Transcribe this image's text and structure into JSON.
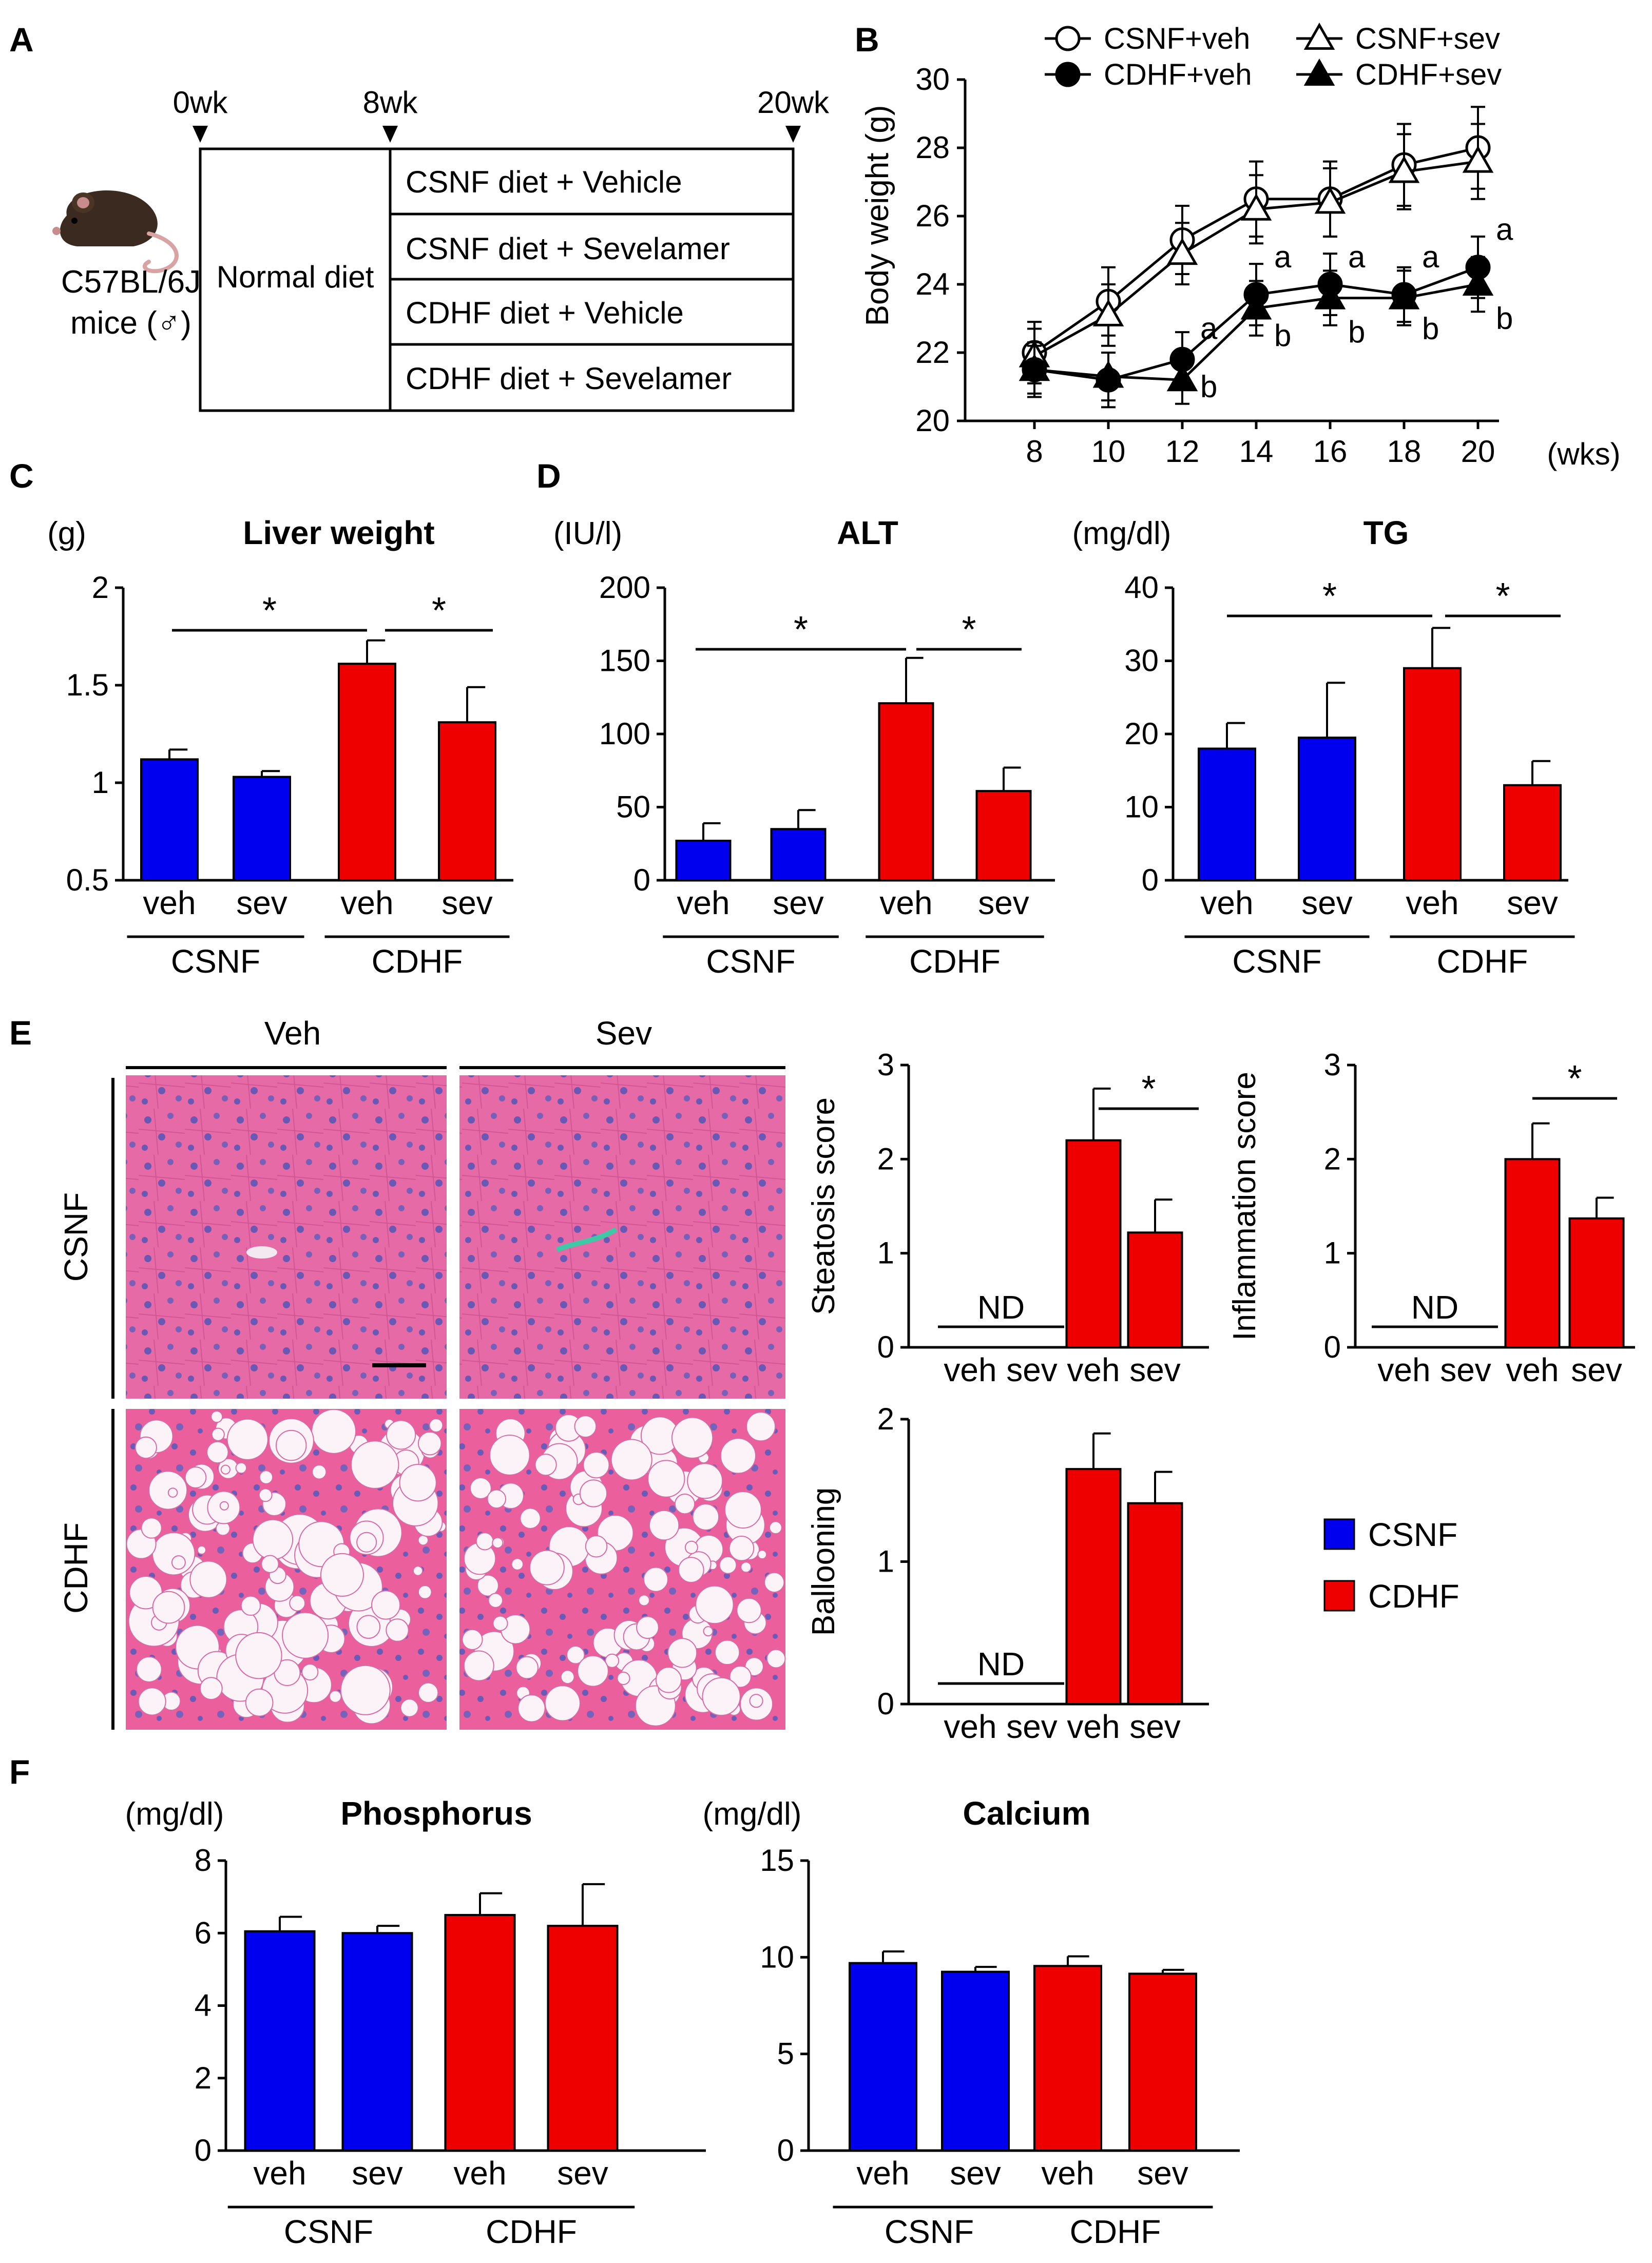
{
  "panels": {
    "A": "A",
    "B": "B",
    "C": "C",
    "D": "D",
    "E": "E",
    "F": "F"
  },
  "colors": {
    "csnf": "#0000ee",
    "cdhf": "#ee0000",
    "axis": "#000000"
  },
  "schematic": {
    "mouse_label_line1": "C57BL/6J",
    "mouse_label_line2": "mice (♂)",
    "time_marks": [
      "0wk",
      "8wk",
      "20wk"
    ],
    "normal_diet": "Normal diet",
    "arms": [
      "CSNF diet + Vehicle",
      "CSNF diet + Sevelamer",
      "CDHF diet + Vehicle",
      "CDHF diet + Sevelamer"
    ],
    "icons": [
      "mouse-icon",
      "timeline-arrow-icon"
    ]
  },
  "histology": {
    "col_labels": [
      "Veh",
      "Sev"
    ],
    "row_labels": [
      "CSNF",
      "CDHF"
    ]
  },
  "legend_E": {
    "items": [
      "CSNF",
      "CDHF"
    ]
  },
  "chart_data": [
    {
      "id": "B",
      "type": "line",
      "ylabel": "Body weight (g)",
      "xunit": "(wks)",
      "x": [
        8,
        10,
        12,
        14,
        16,
        18,
        20
      ],
      "ylim": [
        20,
        30
      ],
      "yticks": [
        20,
        22,
        24,
        26,
        28,
        30
      ],
      "series": [
        {
          "name": "CSNF+veh",
          "marker": "circle-open",
          "values": [
            22.0,
            23.5,
            25.3,
            26.5,
            26.5,
            27.5,
            28.0
          ],
          "err": [
            0.9,
            1.0,
            1.0,
            1.1,
            1.1,
            1.2,
            1.2
          ]
        },
        {
          "name": "CSNF+sev",
          "marker": "triangle-open",
          "values": [
            21.9,
            23.1,
            24.9,
            26.2,
            26.4,
            27.3,
            27.6
          ],
          "err": [
            0.8,
            0.9,
            0.9,
            1.0,
            1.0,
            1.1,
            1.1
          ]
        },
        {
          "name": "CDHF+veh",
          "marker": "circle-filled",
          "values": [
            21.5,
            21.2,
            21.8,
            23.7,
            24.0,
            23.7,
            24.5
          ],
          "err": [
            0.8,
            0.8,
            0.8,
            0.9,
            0.9,
            0.8,
            0.9
          ]
        },
        {
          "name": "CDHF+sev",
          "marker": "triangle-filled",
          "values": [
            21.5,
            21.3,
            21.2,
            23.3,
            23.6,
            23.6,
            24.0
          ],
          "err": [
            0.7,
            0.7,
            0.7,
            0.8,
            0.8,
            0.8,
            0.8
          ]
        }
      ],
      "sig_a_labels": [
        "a",
        "a",
        "a",
        "a",
        "a"
      ],
      "sig_b_labels": [
        "b",
        "b",
        "b",
        "b",
        "b"
      ]
    },
    {
      "id": "C",
      "type": "bar",
      "title": "Liver weight",
      "unit": "(g)",
      "categories": [
        "veh",
        "sev",
        "veh",
        "sev"
      ],
      "groups": [
        "CSNF",
        "CDHF"
      ],
      "values": [
        1.12,
        1.03,
        1.61,
        1.31
      ],
      "err": [
        0.05,
        0.03,
        0.12,
        0.18
      ],
      "ylim": [
        0.5,
        2
      ],
      "ytick_labels": [
        "0.5",
        "1",
        "1.5",
        "2"
      ],
      "sig": [
        "*",
        "*"
      ]
    },
    {
      "id": "D1",
      "type": "bar",
      "title": "ALT",
      "unit": "(IU/l)",
      "categories": [
        "veh",
        "sev",
        "veh",
        "sev"
      ],
      "groups": [
        "CSNF",
        "CDHF"
      ],
      "values": [
        27,
        35,
        121,
        61
      ],
      "err": [
        12,
        13,
        31,
        16
      ],
      "ylim": [
        0,
        200
      ],
      "ytick_labels": [
        "0",
        "50",
        "100",
        "150",
        "200"
      ],
      "sig": [
        "*",
        "*"
      ]
    },
    {
      "id": "D2",
      "type": "bar",
      "title": "TG",
      "unit": "(mg/dl)",
      "categories": [
        "veh",
        "sev",
        "veh",
        "sev"
      ],
      "groups": [
        "CSNF",
        "CDHF"
      ],
      "values": [
        18,
        19.5,
        29,
        13
      ],
      "err": [
        3.5,
        7.5,
        5.5,
        3.3
      ],
      "ylim": [
        0,
        40
      ],
      "ytick_labels": [
        "0",
        "10",
        "20",
        "30",
        "40"
      ],
      "sig": [
        "*",
        "*"
      ]
    },
    {
      "id": "E1",
      "type": "bar",
      "ylabel": "Steatosis score",
      "categories": [
        "veh",
        "sev",
        "veh",
        "sev"
      ],
      "values": [
        null,
        null,
        2.2,
        1.22
      ],
      "err": [
        0,
        0,
        0.55,
        0.35
      ],
      "ylim": [
        0,
        3
      ],
      "ytick_labels": [
        "0",
        "1",
        "2",
        "3"
      ],
      "nd": "ND",
      "sig": [
        "*"
      ]
    },
    {
      "id": "E2",
      "type": "bar",
      "ylabel": "Inflammation score",
      "categories": [
        "veh",
        "sev",
        "veh",
        "sev"
      ],
      "values": [
        null,
        null,
        2.0,
        1.37
      ],
      "err": [
        0,
        0,
        0.38,
        0.22
      ],
      "ylim": [
        0,
        3
      ],
      "ytick_labels": [
        "0",
        "1",
        "2",
        "3"
      ],
      "nd": "ND",
      "sig": [
        "*"
      ]
    },
    {
      "id": "E3",
      "type": "bar",
      "ylabel": "Ballooning",
      "categories": [
        "veh",
        "sev",
        "veh",
        "sev"
      ],
      "values": [
        null,
        null,
        1.65,
        1.41
      ],
      "err": [
        0,
        0,
        0.25,
        0.22
      ],
      "ylim": [
        0,
        2
      ],
      "ytick_labels": [
        "0",
        "1",
        "2"
      ],
      "nd": "ND",
      "sig": []
    },
    {
      "id": "F1",
      "type": "bar",
      "title": "Phosphorus",
      "unit": "(mg/dl)",
      "categories": [
        "veh",
        "sev",
        "veh",
        "sev"
      ],
      "groups": [
        "CSNF",
        "CDHF"
      ],
      "values": [
        6.05,
        6.0,
        6.5,
        6.2
      ],
      "err": [
        0.4,
        0.2,
        0.6,
        1.15
      ],
      "ylim": [
        0,
        8
      ],
      "ytick_labels": [
        "0",
        "2",
        "4",
        "6",
        "8"
      ],
      "sig": []
    },
    {
      "id": "F2",
      "type": "bar",
      "title": "Calcium",
      "unit": "(mg/dl)",
      "categories": [
        "veh",
        "sev",
        "veh",
        "sev"
      ],
      "groups": [
        "CSNF",
        "CDHF"
      ],
      "values": [
        9.7,
        9.25,
        9.55,
        9.15
      ],
      "err": [
        0.6,
        0.25,
        0.5,
        0.2
      ],
      "ylim": [
        0,
        15
      ],
      "ytick_labels": [
        "0",
        "5",
        "10",
        "15"
      ],
      "sig": []
    }
  ]
}
